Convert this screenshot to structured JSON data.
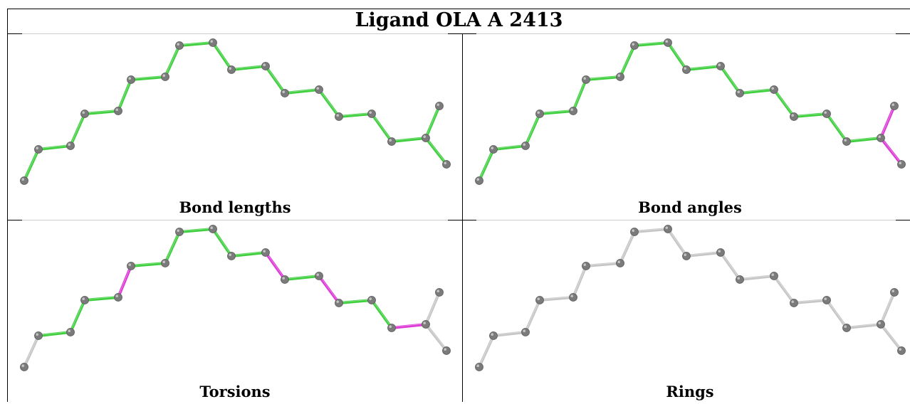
{
  "title": "Ligand OLA A 2413",
  "colors": {
    "ok": "#3fcf3f",
    "outlier": "#dd3ad6",
    "neutral": "#c6c6c6",
    "atom": "#7b7b7b"
  },
  "panels": [
    {
      "label": "Bond lengths",
      "bond_states": [
        "ok",
        "ok",
        "ok",
        "ok",
        "ok",
        "ok",
        "ok",
        "ok",
        "ok",
        "ok",
        "ok",
        "ok",
        "ok",
        "ok",
        "ok",
        "ok",
        "ok",
        "ok"
      ]
    },
    {
      "label": "Bond angles",
      "bond_states": [
        "ok",
        "ok",
        "ok",
        "ok",
        "ok",
        "ok",
        "ok",
        "ok",
        "ok",
        "ok",
        "ok",
        "ok",
        "ok",
        "ok",
        "ok",
        "ok",
        "outlier",
        "outlier"
      ]
    },
    {
      "label": "Torsions",
      "bond_states": [
        "neutral",
        "ok",
        "ok",
        "ok",
        "outlier",
        "ok",
        "ok",
        "ok",
        "ok",
        "ok",
        "outlier",
        "ok",
        "outlier",
        "ok",
        "ok",
        "outlier",
        "neutral",
        "neutral"
      ]
    },
    {
      "label": "Rings",
      "bond_states": [
        "neutral",
        "neutral",
        "neutral",
        "neutral",
        "neutral",
        "neutral",
        "neutral",
        "neutral",
        "neutral",
        "neutral",
        "neutral",
        "neutral",
        "neutral",
        "neutral",
        "neutral",
        "neutral",
        "neutral",
        "neutral"
      ]
    }
  ]
}
